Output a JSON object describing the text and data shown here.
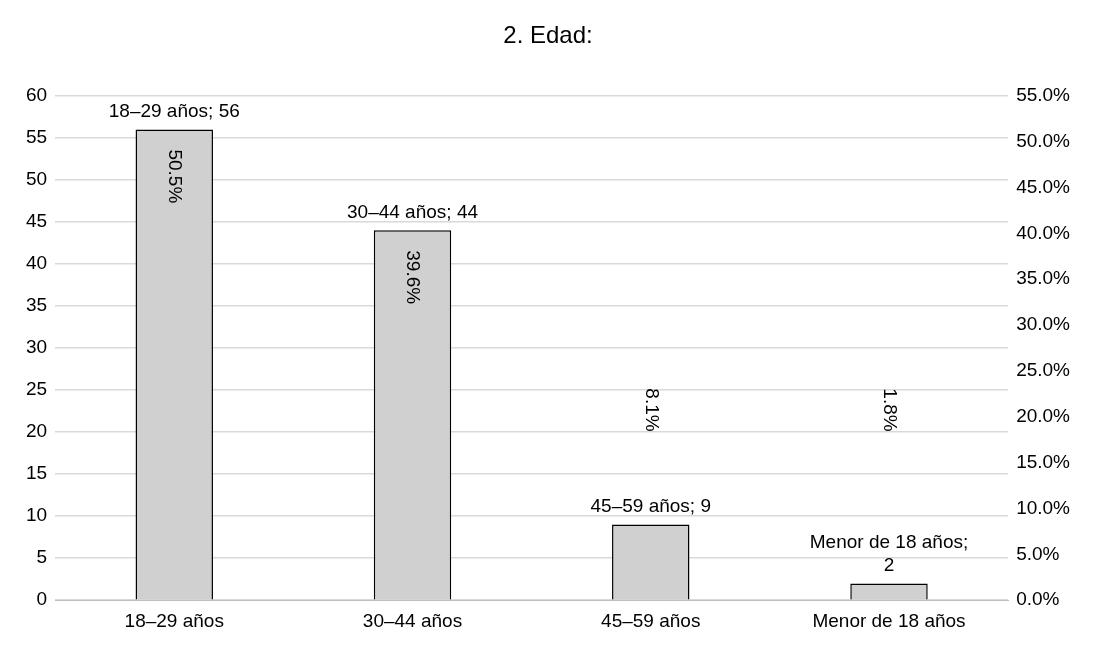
{
  "chart_data": {
    "type": "bar",
    "title": "2. Edad:",
    "categories": [
      "18–29 años",
      "30–44 años",
      "45–59 años",
      "Menor de 18 años"
    ],
    "series": [
      {
        "color": "#d0d0d0",
        "values": [
          56,
          44,
          9,
          2
        ],
        "value_labels": [
          "18–29 años; 56",
          "30–44 años; 44",
          "45–59 años; 9",
          "Menor de 18 años; 2"
        ]
      }
    ],
    "ylim": [
      0,
      60
    ],
    "yticks": [
      0,
      5,
      10,
      15,
      20,
      25,
      30,
      35,
      40,
      45,
      50,
      55,
      60
    ],
    "y2lim": [
      0,
      55
    ],
    "y2ticks": [
      {
        "value": 0,
        "label": "0.0%"
      },
      {
        "value": 5,
        "label": "5.0%"
      },
      {
        "value": 10,
        "label": "10.0%"
      },
      {
        "value": 15,
        "label": "15.0%"
      },
      {
        "value": 20,
        "label": "20.0%"
      },
      {
        "value": 25,
        "label": "25.0%"
      },
      {
        "value": 30,
        "label": "30.0%"
      },
      {
        "value": 35,
        "label": "35.0%"
      },
      {
        "value": 40,
        "label": "40.0%"
      },
      {
        "value": 45,
        "label": "45.0%"
      },
      {
        "value": 50,
        "label": "50.0%"
      },
      {
        "value": 55,
        "label": "55.0%"
      }
    ],
    "annotations": [
      "50.5%",
      "39.6%",
      "8.1%",
      "1.8%"
    ],
    "grid": "y",
    "legend": false
  }
}
